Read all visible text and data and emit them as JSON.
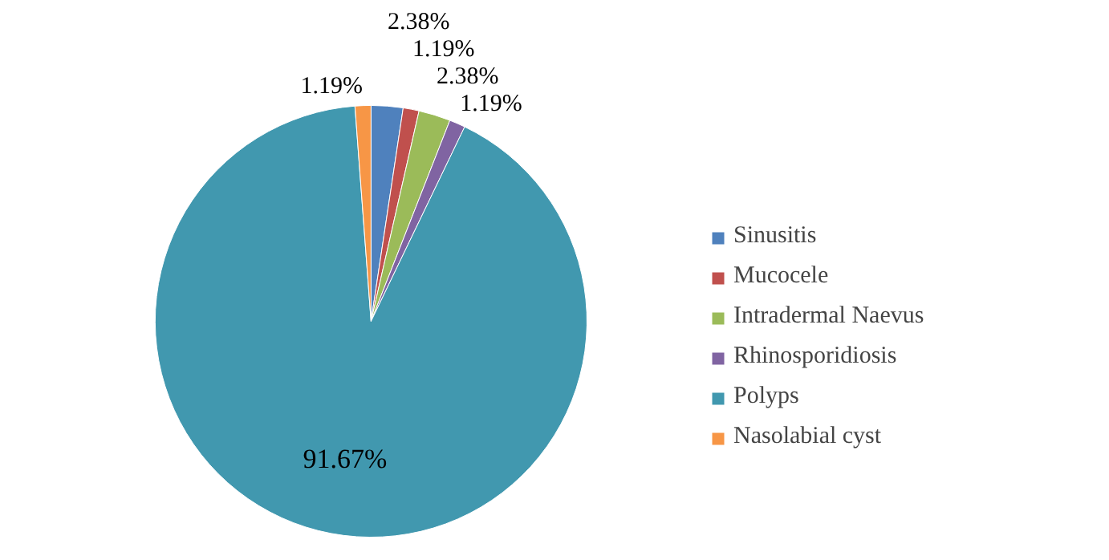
{
  "chart_data": {
    "type": "pie",
    "categories": [
      "Sinusitis",
      "Mucocele",
      "Intradermal Naevus",
      "Rhinosporidiosis",
      "Polyps",
      "Nasolabial cyst"
    ],
    "values": [
      2.38,
      1.19,
      2.38,
      1.19,
      91.67,
      1.19
    ],
    "value_labels": [
      "2.38%",
      "1.19%",
      "2.38%",
      "1.19%",
      "91.67%",
      "1.19%"
    ],
    "colors": [
      "#4f81bd",
      "#c0504d",
      "#9bbb59",
      "#8064a2",
      "#4198af",
      "#f79646"
    ],
    "legend": "right"
  }
}
